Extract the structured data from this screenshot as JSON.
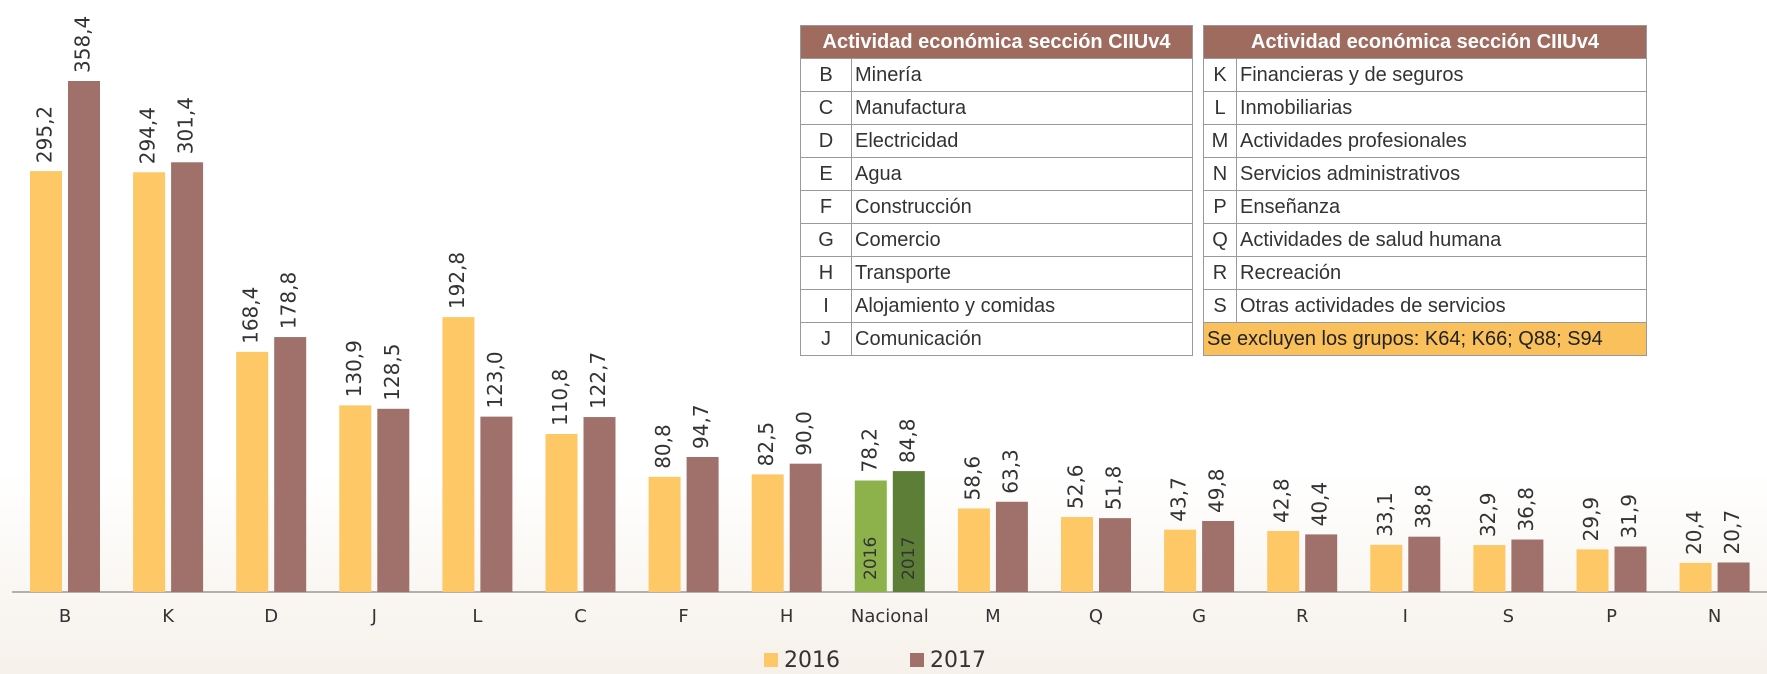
{
  "chart_data": {
    "type": "bar",
    "categories": [
      "B",
      "K",
      "D",
      "J",
      "L",
      "C",
      "F",
      "H",
      "Nacional",
      "M",
      "Q",
      "G",
      "R",
      "I",
      "S",
      "P",
      "N"
    ],
    "series": [
      {
        "name": "2016",
        "color": "#fdc865",
        "values": [
          295.2,
          294.4,
          168.4,
          130.9,
          192.8,
          110.8,
          80.8,
          82.5,
          78.2,
          58.6,
          52.6,
          43.7,
          42.8,
          33.1,
          32.9,
          29.9,
          20.4
        ],
        "value_labels": [
          "295,2",
          "294,4",
          "168,4",
          "130,9",
          "192,8",
          "110,8",
          "80,8",
          "82,5",
          "78,2",
          "58,6",
          "52,6",
          "43,7",
          "42,8",
          "33,1",
          "32,9",
          "29,9",
          "20,4"
        ]
      },
      {
        "name": "2017",
        "color": "#a0716a",
        "values": [
          358.4,
          301.4,
          178.8,
          128.5,
          123.0,
          122.7,
          94.7,
          90.0,
          84.8,
          63.3,
          51.8,
          49.8,
          40.4,
          38.8,
          36.8,
          31.9,
          20.7
        ],
        "value_labels": [
          "358,4",
          "301,4",
          "178,8",
          "128,5",
          "123,0",
          "122,7",
          "94,7",
          "90,0",
          "84,8",
          "63,3",
          "51,8",
          "49,8",
          "40,4",
          "38,8",
          "36,8",
          "31,9",
          "20,7"
        ]
      }
    ],
    "highlight": {
      "index": 8,
      "colors": [
        "#8db24b",
        "#5d7e36"
      ]
    },
    "legend": "bottom"
  },
  "tables": [
    {
      "header": "Actividad económica sección CIIUv4",
      "rows": [
        [
          "B",
          "Minería"
        ],
        [
          "C",
          "Manufactura"
        ],
        [
          "D",
          "Electricidad"
        ],
        [
          "E",
          "Agua"
        ],
        [
          "F",
          "Construcción"
        ],
        [
          "G",
          "Comercio"
        ],
        [
          "H",
          "Transporte"
        ],
        [
          "I",
          "Alojamiento y comidas"
        ],
        [
          "J",
          "Comunicación"
        ]
      ]
    },
    {
      "header": "Actividad económica sección CIIUv4",
      "rows": [
        [
          "K",
          "Financieras y de seguros"
        ],
        [
          "L",
          "Inmobiliarias"
        ],
        [
          "M",
          "Actividades profesionales"
        ],
        [
          "N",
          "Servicios administrativos"
        ],
        [
          "P",
          "Enseñanza"
        ],
        [
          "Q",
          "Actividades de salud humana"
        ],
        [
          "R",
          "Recreación"
        ],
        [
          "S",
          "Otras actividades de servicios"
        ]
      ],
      "note": "Se excluyen los grupos: K64; K66; Q88; S94"
    }
  ]
}
